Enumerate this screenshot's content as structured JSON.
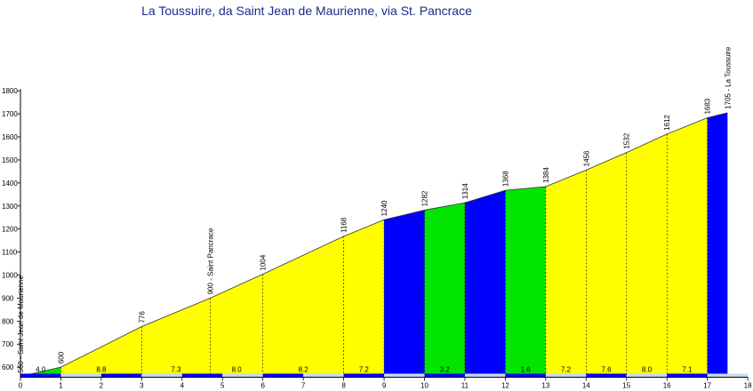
{
  "chart_data": {
    "type": "area",
    "title": "La Toussuire, da Saint Jean de Maurienne, via St. Pancrace",
    "xlabel": "",
    "ylabel": "",
    "xlim": [
      0,
      18
    ],
    "ylim": [
      560,
      1800
    ],
    "x_ticks": [
      "0",
      "1",
      "2",
      "3",
      "4",
      "5",
      "6",
      "7",
      "8",
      "9",
      "10",
      "11",
      "12",
      "13",
      "14",
      "15",
      "16",
      "17",
      "18"
    ],
    "y_ticks": [
      "600",
      "700",
      "800",
      "900",
      "1000",
      "1100",
      "1200",
      "1300",
      "1400",
      "1500",
      "1600",
      "1700",
      "1800"
    ],
    "x": [
      0,
      1,
      3,
      4.7,
      6,
      8,
      9,
      10,
      11,
      12,
      13,
      14,
      15,
      16,
      17,
      17.5
    ],
    "y": [
      560,
      600,
      776,
      900,
      1004,
      1168,
      1240,
      1282,
      1314,
      1368,
      1384,
      1456,
      1532,
      1612,
      1683,
      1705
    ],
    "point_labels": [
      "560 - Saint Jean de Maurienne",
      "600",
      "776",
      "900 - Saint Pancrace",
      "1004",
      "1168",
      "1240",
      "1282",
      "1314",
      "1368",
      "1384",
      "1456",
      "1532",
      "1612",
      "1683",
      "1705 - La Toussuire"
    ],
    "segments": [
      {
        "from": 0,
        "to": 1,
        "grade": "4.0",
        "color": "#00e600"
      },
      {
        "from": 1,
        "to": 3,
        "grade": "8.8",
        "color": "#ffff00"
      },
      {
        "from": 3,
        "to": 4.7,
        "grade": "7.3",
        "color": "#ffff00"
      },
      {
        "from": 4.7,
        "to": 6,
        "grade": "8.0",
        "color": "#ffff00"
      },
      {
        "from": 6,
        "to": 8,
        "grade": "8.2",
        "color": "#ffff00"
      },
      {
        "from": 8,
        "to": 9,
        "grade": "7.2",
        "color": "#ffff00"
      },
      {
        "from": 9,
        "to": 10,
        "grade": "",
        "color": "#0000ff"
      },
      {
        "from": 10,
        "to": 11,
        "grade": "3.2",
        "color": "#00e600"
      },
      {
        "from": 11,
        "to": 12,
        "grade": "",
        "color": "#0000ff"
      },
      {
        "from": 12,
        "to": 13,
        "grade": "1.6",
        "color": "#00e600"
      },
      {
        "from": 13,
        "to": 14,
        "grade": "7.2",
        "color": "#ffff00"
      },
      {
        "from": 14,
        "to": 15,
        "grade": "7.6",
        "color": "#ffff00"
      },
      {
        "from": 15,
        "to": 16,
        "grade": "8.0",
        "color": "#ffff00"
      },
      {
        "from": 16,
        "to": 17,
        "grade": "7.1",
        "color": "#ffff00"
      },
      {
        "from": 17,
        "to": 17.5,
        "grade": "",
        "color": "#0000ff"
      }
    ],
    "grid": false,
    "legend": "none"
  }
}
